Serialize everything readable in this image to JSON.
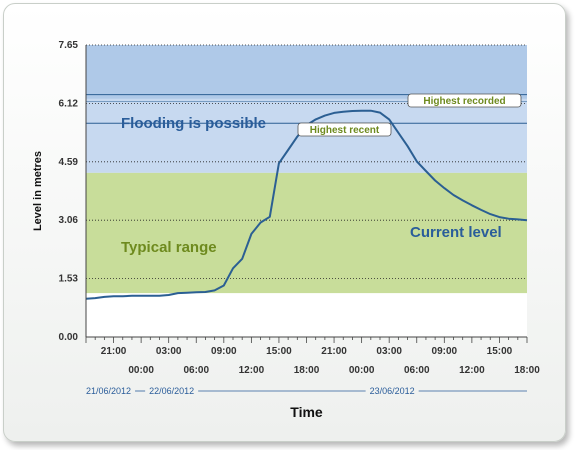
{
  "chart_data": {
    "type": "line",
    "title": "",
    "xlabel": "Time",
    "ylabel": "Level in metres",
    "ylim": [
      0,
      7.65
    ],
    "y_ticks": [
      "0.00",
      "1.53",
      "3.06",
      "4.59",
      "6.12",
      "7.65"
    ],
    "x_ticks_upper": [
      "21:00",
      "03:00",
      "09:00",
      "15:00",
      "21:00",
      "03:00",
      "09:00",
      "15:00"
    ],
    "x_ticks_lower": [
      "00:00",
      "06:00",
      "12:00",
      "18:00",
      "00:00",
      "06:00",
      "12:00",
      "18:00"
    ],
    "x_tick_hours_upper": [
      3,
      9,
      15,
      21,
      27,
      33,
      39,
      45
    ],
    "x_tick_hours_lower": [
      6,
      12,
      18,
      24,
      30,
      36,
      42,
      48
    ],
    "date_labels": [
      {
        "text": "21/06/2012",
        "hour": 0
      },
      {
        "text": "22/06/2012",
        "hour": 6
      },
      {
        "text": "23/06/2012",
        "hour": 30
      }
    ],
    "bands": [
      {
        "name": "Flooding is possible",
        "from": 4.3,
        "to": 7.65,
        "color": "#c7d9f0",
        "color_top": "#a7c3e6",
        "label_color": "#2a5d9a"
      },
      {
        "name": "Typical range",
        "from": 1.15,
        "to": 4.3,
        "color": "#c8dd9a",
        "label_color": "#6e8a1e"
      }
    ],
    "reference_lines": [
      {
        "name": "Highest recorded",
        "value": 6.35
      },
      {
        "name": "Highest recent",
        "value": 5.6
      }
    ],
    "series": [
      {
        "name": "Current level",
        "color": "#2b5f93",
        "x_hours": [
          0,
          1,
          2,
          3,
          4,
          5,
          6,
          7,
          8,
          9,
          10,
          11,
          12,
          13,
          14,
          15,
          16,
          17,
          18,
          19,
          20,
          21,
          22,
          23,
          24,
          25,
          26,
          27,
          28,
          29,
          30,
          31,
          32,
          33,
          34,
          35,
          36,
          37,
          38,
          39,
          40,
          41,
          42,
          43,
          44,
          45,
          46,
          47,
          48
        ],
        "values": [
          1.0,
          1.02,
          1.05,
          1.07,
          1.07,
          1.08,
          1.08,
          1.08,
          1.08,
          1.1,
          1.15,
          1.16,
          1.17,
          1.18,
          1.22,
          1.35,
          1.8,
          2.05,
          2.7,
          3.0,
          3.15,
          4.55,
          4.9,
          5.25,
          5.55,
          5.7,
          5.8,
          5.87,
          5.9,
          5.92,
          5.93,
          5.93,
          5.88,
          5.7,
          5.35,
          5.0,
          4.6,
          4.35,
          4.1,
          3.9,
          3.72,
          3.58,
          3.45,
          3.33,
          3.22,
          3.14,
          3.1,
          3.08,
          3.06
        ]
      }
    ],
    "legend": "none"
  }
}
